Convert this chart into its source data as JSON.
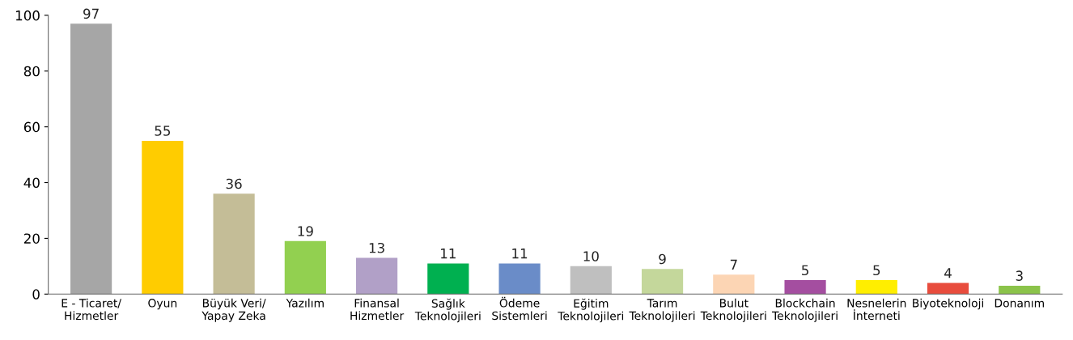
{
  "chart_data": {
    "type": "bar",
    "categories": [
      "E - Ticaret/\nHizmetler",
      "Oyun",
      "Büyük Veri/\nYapay Zeka",
      "Yazılım",
      "Finansal\nHizmetler",
      "Sağlık\nTeknolojileri",
      "Ödeme\nSistemleri",
      "Eğitim\nTeknolojileri",
      "Tarım\nTeknolojileri",
      "Bulut\nTeknolojileri",
      "Blockchain\nTeknolojileri",
      "Nesnelerin\nİnterneti",
      "Biyoteknoloji",
      "Donanım"
    ],
    "values": [
      97,
      55,
      36,
      19,
      13,
      11,
      11,
      10,
      9,
      7,
      5,
      5,
      4,
      3
    ],
    "colors": [
      "#a6a6a6",
      "#ffcc00",
      "#c4bd97",
      "#92d050",
      "#b1a0c7",
      "#00b050",
      "#6a8cc8",
      "#bfbfbf",
      "#c4d79b",
      "#fcd5b4",
      "#a44ea0",
      "#ffee00",
      "#e84c3d",
      "#8bc34a"
    ],
    "ylim": [
      0,
      100
    ],
    "yticks": [
      0,
      20,
      40,
      60,
      80,
      100
    ],
    "data_labels": true,
    "grid": false,
    "legend": false
  }
}
